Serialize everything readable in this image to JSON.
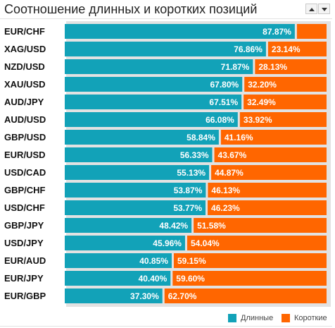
{
  "header": {
    "title": "Соотношение длинных и коротких позиций"
  },
  "colors": {
    "long": "#12a2b8",
    "short": "#ff6600"
  },
  "legend": {
    "long_label": "Длинные",
    "short_label": "Короткие"
  },
  "chart_data": {
    "type": "bar",
    "orientation": "horizontal-stacked-100",
    "title": "Соотношение длинных и коротких позиций",
    "categories": [
      "EUR/CHF",
      "XAG/USD",
      "NZD/USD",
      "XAU/USD",
      "AUD/JPY",
      "AUD/USD",
      "GBP/USD",
      "EUR/USD",
      "USD/CAD",
      "GBP/CHF",
      "USD/CHF",
      "GBP/JPY",
      "USD/JPY",
      "EUR/AUD",
      "EUR/JPY",
      "EUR/GBP"
    ],
    "series": [
      {
        "name": "Длинные",
        "values": [
          87.87,
          76.86,
          71.87,
          67.8,
          67.51,
          66.08,
          58.84,
          56.33,
          55.13,
          53.87,
          53.77,
          48.42,
          45.96,
          40.85,
          40.4,
          37.3
        ],
        "labels": [
          "87.87%",
          "76.86%",
          "71.87%",
          "67.80%",
          "67.51%",
          "66.08%",
          "58.84%",
          "56.33%",
          "55.13%",
          "53.87%",
          "53.77%",
          "48.42%",
          "45.96%",
          "40.85%",
          "40.40%",
          "37.30%"
        ]
      },
      {
        "name": "Короткие",
        "values": [
          12.13,
          23.14,
          28.13,
          32.2,
          32.49,
          33.92,
          41.16,
          43.67,
          44.87,
          46.13,
          46.23,
          51.58,
          54.04,
          59.15,
          59.6,
          62.7
        ],
        "labels": [
          "",
          "23.14%",
          "28.13%",
          "32.20%",
          "32.49%",
          "33.92%",
          "41.16%",
          "43.67%",
          "44.87%",
          "46.13%",
          "46.23%",
          "51.58%",
          "54.04%",
          "59.15%",
          "59.60%",
          "62.70%"
        ]
      }
    ],
    "xlim": [
      0,
      100
    ],
    "legend_position": "bottom-right"
  }
}
